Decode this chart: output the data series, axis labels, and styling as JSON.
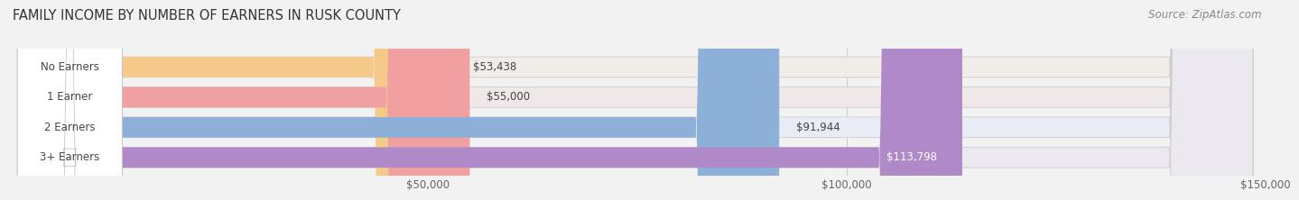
{
  "title": "FAMILY INCOME BY NUMBER OF EARNERS IN RUSK COUNTY",
  "source": "Source: ZipAtlas.com",
  "categories": [
    "No Earners",
    "1 Earner",
    "2 Earners",
    "3+ Earners"
  ],
  "values": [
    53438,
    55000,
    91944,
    113798
  ],
  "bar_colors": [
    "#f5c98a",
    "#f0a0a0",
    "#8db0d8",
    "#b08ac8"
  ],
  "bg_colors": [
    "#f0ece8",
    "#f0e8e8",
    "#e8ecf4",
    "#ece8f0"
  ],
  "value_labels": [
    "$53,438",
    "$55,000",
    "$91,944",
    "$113,798"
  ],
  "value_label_inside": [
    false,
    false,
    false,
    true
  ],
  "xlim_min": 0,
  "xlim_max": 150000,
  "xticks": [
    50000,
    100000,
    150000
  ],
  "xtick_labels": [
    "$50,000",
    "$100,000",
    "$150,000"
  ],
  "background_color": "#f2f2f2",
  "title_fontsize": 10.5,
  "source_fontsize": 8.5,
  "bar_label_fontsize": 8.5,
  "value_label_fontsize": 8.5
}
